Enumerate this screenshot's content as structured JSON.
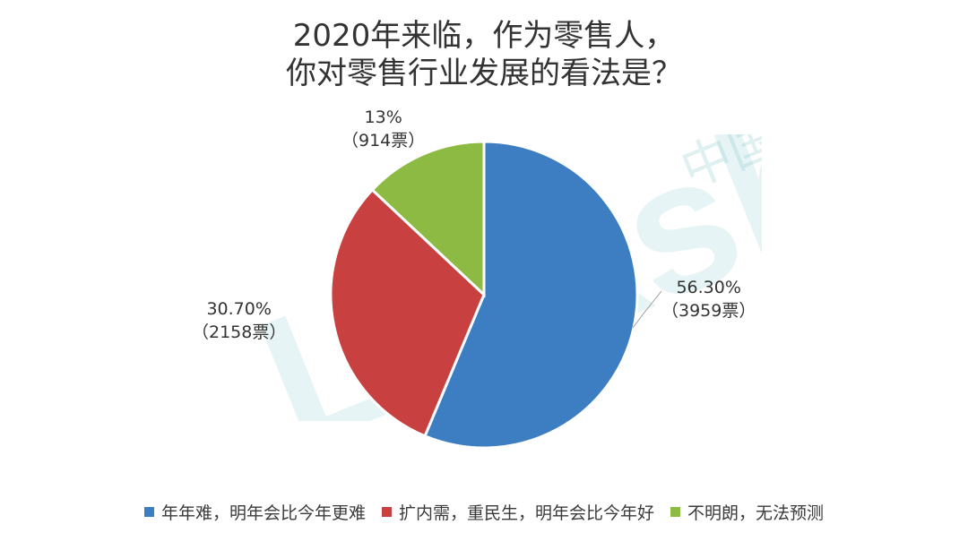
{
  "chart_data": {
    "type": "pie",
    "title_lines": [
      "2020年来临，作为零售人，",
      "你对零售行业发展的看法是？"
    ],
    "slices": [
      {
        "name": "年年难，明年会比今年更难",
        "value": 56.3,
        "percent_label": "56.30%",
        "votes_label": "（3959票）",
        "color": "#3d7ec2"
      },
      {
        "name": "扩内需，重民生，明年会比今年好",
        "value": 30.7,
        "percent_label": "30.70%",
        "votes_label": "（2158票）",
        "color": "#c94040"
      },
      {
        "name": "不明朗，无法预测",
        "value": 13.0,
        "percent_label": "13%",
        "votes_label": "（914票）",
        "color": "#8dba43"
      }
    ],
    "start_angle_deg": 0,
    "direction": "clockwise",
    "legend_position": "bottom"
  },
  "watermark": {
    "text_latin": "Linkshop",
    "text_cn": "中国商网"
  }
}
